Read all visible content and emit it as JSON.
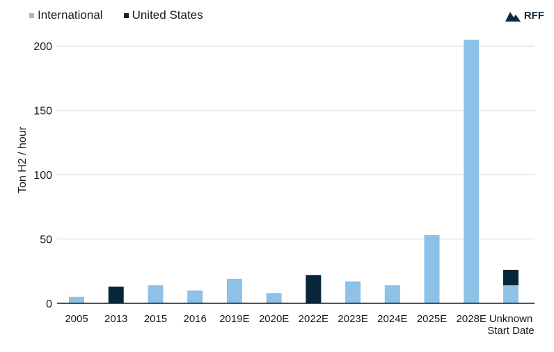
{
  "colors": {
    "international": "#8ec1e8",
    "united_states": "#072637",
    "grid": "#dde7ee",
    "axis": "#1a1a1a"
  },
  "logo": {
    "text": "RFF",
    "icon": "mountain-logo-icon"
  },
  "chart_data": {
    "type": "bar",
    "stacked": true,
    "ylabel": "Ton H2 / hour",
    "xlabel": "",
    "ylim": [
      0,
      205
    ],
    "yticks": [
      0,
      50,
      100,
      150,
      200
    ],
    "grid": true,
    "legend_position": "top-left",
    "categories": [
      "2005",
      "2013",
      "2015",
      "2016",
      "2019E",
      "2020E",
      "2022E",
      "2023E",
      "2024E",
      "2025E",
      "2028E",
      "Unknown Start Date"
    ],
    "series": [
      {
        "name": "International",
        "color": "#8ec1e8",
        "values": [
          5,
          0,
          14,
          10,
          19,
          8,
          0,
          17,
          14,
          53,
          205,
          14
        ]
      },
      {
        "name": "United States",
        "color": "#072637",
        "values": [
          0,
          13,
          0,
          0,
          0,
          0,
          22,
          0,
          0,
          0,
          0,
          12
        ]
      }
    ]
  }
}
